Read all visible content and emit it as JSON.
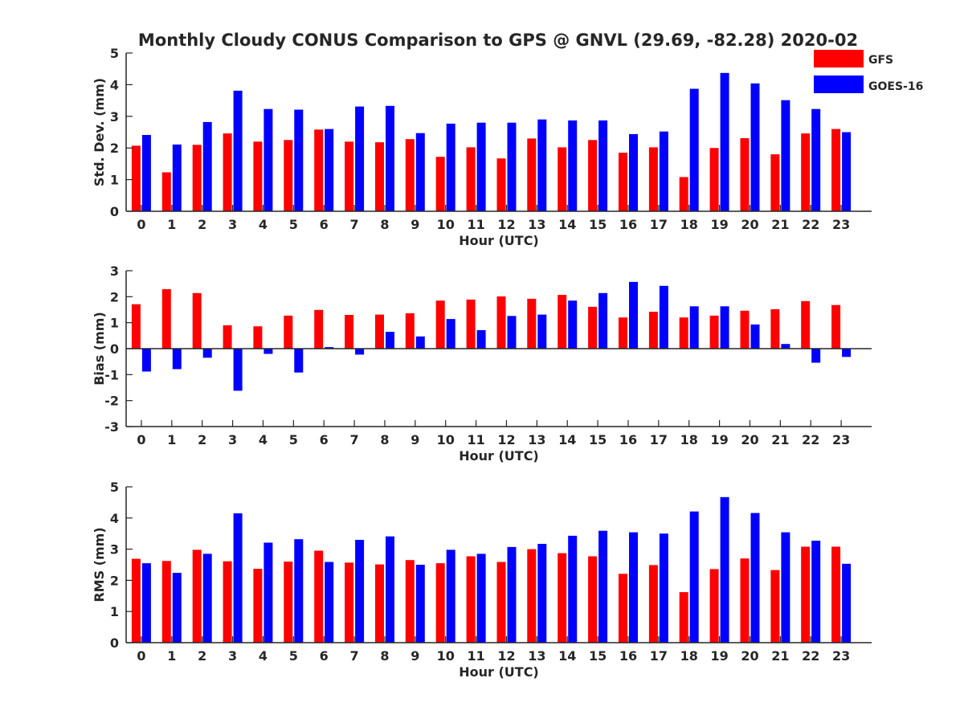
{
  "title": "Monthly Cloudy CONUS Comparison to GPS @ GNVL (29.69, -82.28) 2020-02",
  "legend": {
    "placement": "top-right",
    "entries": [
      {
        "name": "GFS",
        "color": "#ff0000"
      },
      {
        "name": "GOES-16",
        "color": "#0000ff"
      }
    ]
  },
  "chart_data": [
    {
      "type": "bar",
      "xlabel": "Hour (UTC)",
      "ylabel": "Std. Dev. (mm)",
      "ylim": [
        0,
        5
      ],
      "yticks": [
        0,
        1,
        2,
        3,
        4,
        5
      ],
      "categories": [
        "0",
        "1",
        "2",
        "3",
        "4",
        "5",
        "6",
        "7",
        "8",
        "9",
        "10",
        "11",
        "12",
        "13",
        "14",
        "15",
        "16",
        "17",
        "18",
        "19",
        "20",
        "21",
        "22",
        "23"
      ],
      "series": [
        {
          "name": "GFS",
          "color": "#ff0000",
          "values": [
            2.07,
            1.23,
            2.1,
            2.46,
            2.2,
            2.25,
            2.58,
            2.2,
            2.18,
            2.28,
            1.72,
            2.02,
            1.67,
            2.3,
            2.02,
            2.25,
            1.85,
            2.02,
            1.08,
            2.0,
            2.31,
            1.8,
            2.46,
            2.6
          ]
        },
        {
          "name": "GOES-16",
          "color": "#0000ff",
          "values": [
            2.41,
            2.11,
            2.82,
            3.81,
            3.23,
            3.21,
            2.6,
            3.31,
            3.33,
            2.47,
            2.77,
            2.8,
            2.8,
            2.9,
            2.87,
            2.87,
            2.44,
            2.52,
            3.87,
            4.37,
            4.04,
            3.51,
            3.23,
            2.5
          ]
        }
      ]
    },
    {
      "type": "bar",
      "xlabel": "Hour (UTC)",
      "ylabel": "Bias (mm)",
      "ylim": [
        -3,
        3
      ],
      "yticks": [
        -3,
        -2,
        -1,
        0,
        1,
        2,
        3
      ],
      "categories": [
        "0",
        "1",
        "2",
        "3",
        "4",
        "5",
        "6",
        "7",
        "8",
        "9",
        "10",
        "11",
        "12",
        "13",
        "14",
        "15",
        "16",
        "17",
        "18",
        "19",
        "20",
        "21",
        "22",
        "23"
      ],
      "series": [
        {
          "name": "GFS",
          "color": "#ff0000",
          "values": [
            1.71,
            2.29,
            2.14,
            0.9,
            0.86,
            1.27,
            1.49,
            1.3,
            1.31,
            1.36,
            1.85,
            1.89,
            2.01,
            1.92,
            2.07,
            1.61,
            1.2,
            1.42,
            1.2,
            1.27,
            1.46,
            1.52,
            1.83,
            1.68
          ]
        },
        {
          "name": "GOES-16",
          "color": "#0000ff",
          "values": [
            -0.88,
            -0.79,
            -0.35,
            -1.62,
            -0.2,
            -0.92,
            0.06,
            -0.23,
            0.65,
            0.47,
            1.14,
            0.71,
            1.26,
            1.31,
            1.85,
            2.14,
            2.57,
            2.42,
            1.63,
            1.63,
            0.93,
            0.18,
            -0.54,
            -0.32
          ]
        }
      ]
    },
    {
      "type": "bar",
      "xlabel": "Hour (UTC)",
      "ylabel": "RMS (mm)",
      "ylim": [
        0,
        5
      ],
      "yticks": [
        0,
        1,
        2,
        3,
        4,
        5
      ],
      "categories": [
        "0",
        "1",
        "2",
        "3",
        "4",
        "5",
        "6",
        "7",
        "8",
        "9",
        "10",
        "11",
        "12",
        "13",
        "14",
        "15",
        "16",
        "17",
        "18",
        "19",
        "20",
        "21",
        "22",
        "23"
      ],
      "series": [
        {
          "name": "GFS",
          "color": "#ff0000",
          "values": [
            2.69,
            2.62,
            2.98,
            2.61,
            2.37,
            2.6,
            2.95,
            2.57,
            2.51,
            2.65,
            2.55,
            2.77,
            2.59,
            3.0,
            2.87,
            2.77,
            2.21,
            2.49,
            1.62,
            2.36,
            2.7,
            2.33,
            3.08,
            3.08
          ]
        },
        {
          "name": "GOES-16",
          "color": "#0000ff",
          "values": [
            2.55,
            2.24,
            2.85,
            4.15,
            3.21,
            3.32,
            2.59,
            3.3,
            3.41,
            2.5,
            2.98,
            2.85,
            3.07,
            3.17,
            3.43,
            3.59,
            3.54,
            3.5,
            4.21,
            4.67,
            4.16,
            3.54,
            3.27,
            2.53
          ]
        }
      ]
    }
  ]
}
